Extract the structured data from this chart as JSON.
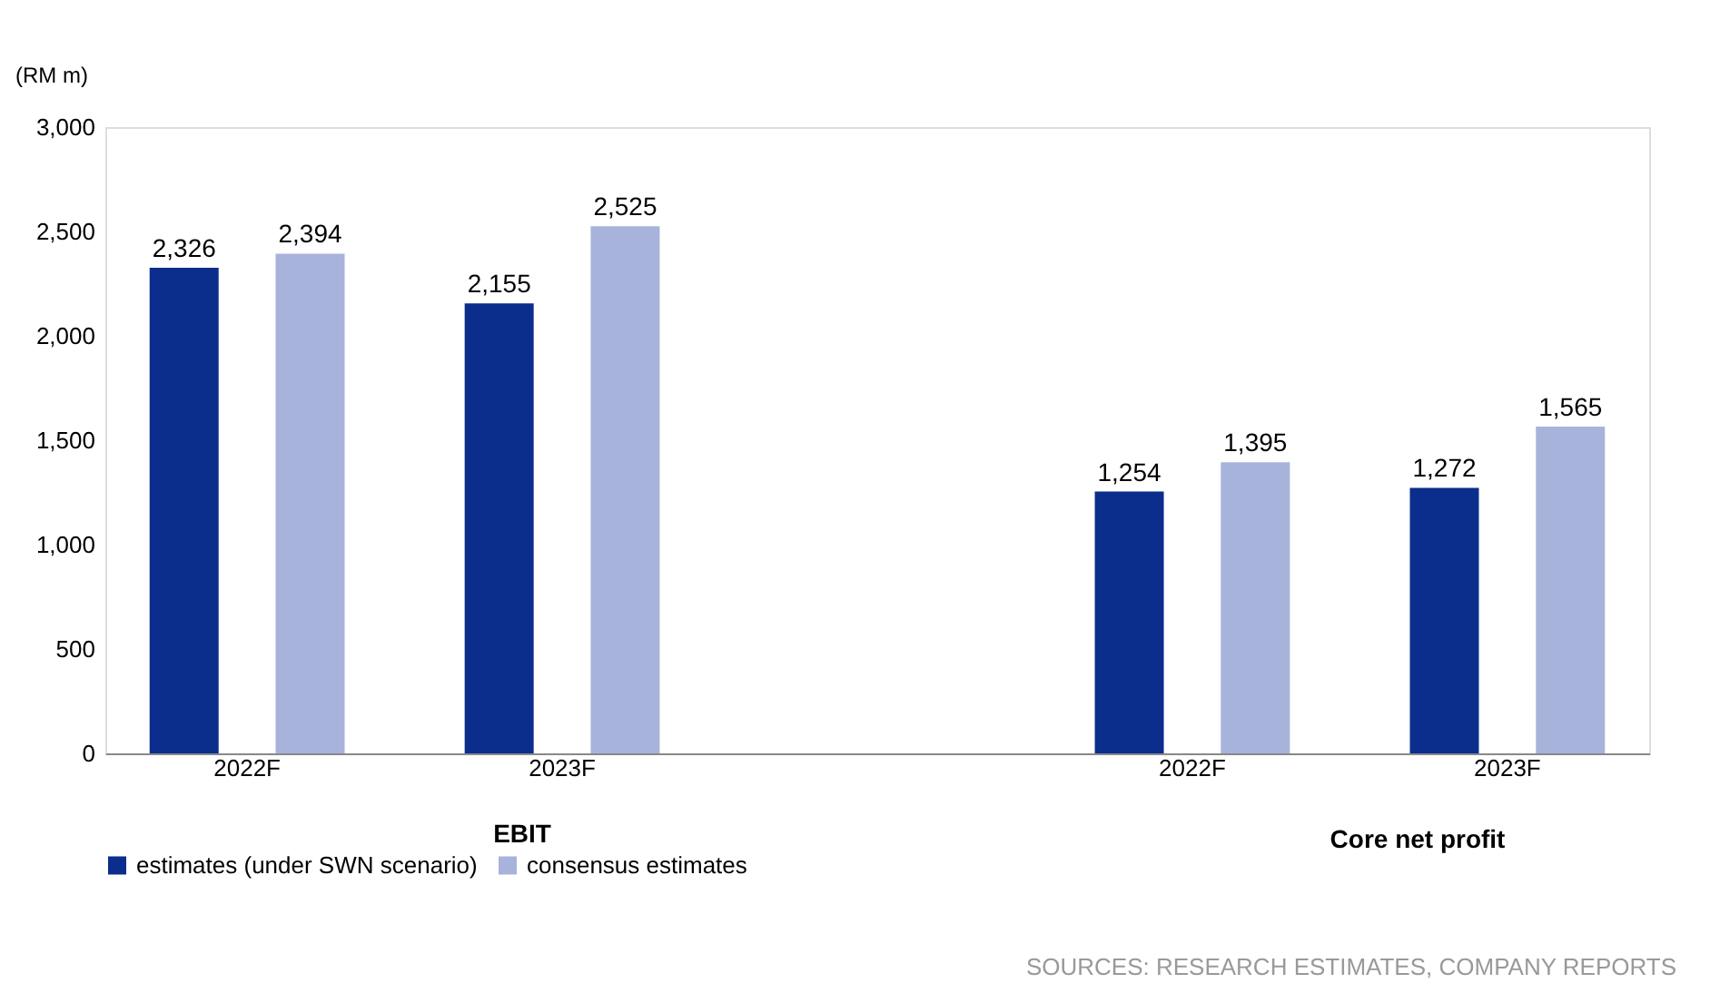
{
  "chart_data": {
    "type": "bar",
    "ylabel": "(RM m)",
    "categories": [
      "2022F",
      "2023F",
      null,
      "2022F",
      "2023F"
    ],
    "series": [
      {
        "name": "estimates (under SWN scenario)",
        "color": "#0b2d8c",
        "values": [
          2326,
          2155,
          null,
          1254,
          1272
        ],
        "value_labels": [
          "2,326",
          "2,155",
          null,
          "1,254",
          "1,272"
        ]
      },
      {
        "name": "consensus estimates",
        "color": "#a7b3da",
        "values": [
          2394,
          2525,
          null,
          1395,
          1565
        ],
        "value_labels": [
          "2,394",
          "2,525",
          null,
          "1,395",
          "1,565"
        ]
      }
    ],
    "ylim": [
      0,
      3000
    ],
    "yticks": [
      0,
      {
        "value": 500,
        "label": "500"
      },
      {
        "value": 1000,
        "label": "1,000"
      },
      {
        "value": 1500,
        "label": "1,500"
      },
      {
        "value": 2000,
        "label": "2,000"
      },
      {
        "value": 2500,
        "label": "2,500"
      },
      {
        "value": 3000,
        "label": "3,000"
      }
    ],
    "grid": false,
    "legend": "bottom",
    "annotations": [
      "EBIT",
      "Core net profit",
      "SOURCES: RESEARCH ESTIMATES, COMPANY REPORTS"
    ]
  }
}
